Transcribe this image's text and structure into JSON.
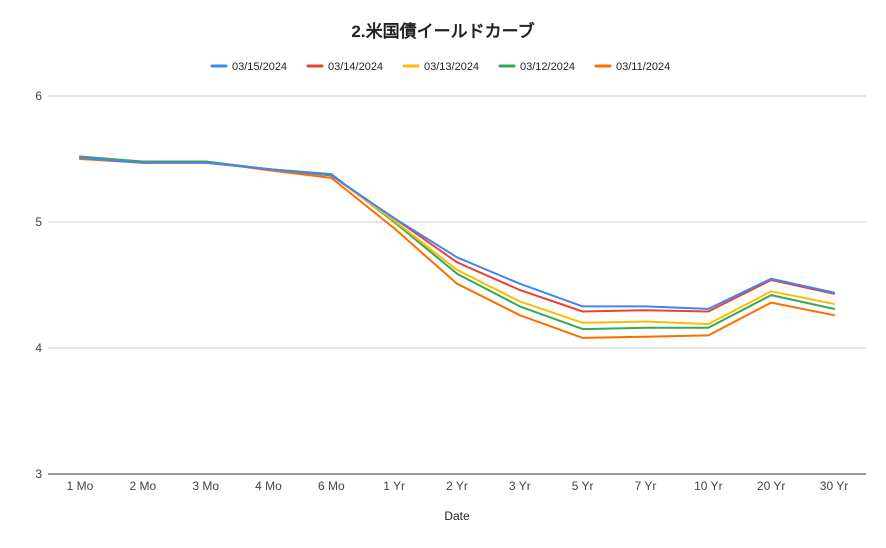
{
  "chart_data": {
    "type": "line",
    "title": "2.米国債イールドカーブ",
    "xlabel": "Date",
    "ylabel": "",
    "ylim": [
      3,
      6
    ],
    "yticks": [
      3,
      4,
      5,
      6
    ],
    "grid": true,
    "legend_position": "top",
    "categories": [
      "1 Mo",
      "2 Mo",
      "3 Mo",
      "4 Mo",
      "6 Mo",
      "1 Yr",
      "2 Yr",
      "3 Yr",
      "5 Yr",
      "7 Yr",
      "10 Yr",
      "20 Yr",
      "30 Yr"
    ],
    "series": [
      {
        "name": "03/15/2024",
        "color": "#4285f4",
        "values": [
          5.51,
          5.47,
          5.47,
          5.42,
          5.37,
          5.03,
          4.72,
          4.51,
          4.33,
          4.33,
          4.31,
          4.55,
          4.44
        ]
      },
      {
        "name": "03/14/2024",
        "color": "#ea4335",
        "values": [
          5.51,
          5.47,
          5.47,
          5.42,
          5.37,
          5.03,
          4.68,
          4.46,
          4.29,
          4.3,
          4.29,
          4.54,
          4.43
        ]
      },
      {
        "name": "03/13/2024",
        "color": "#fbbc04",
        "values": [
          5.51,
          5.47,
          5.47,
          5.42,
          5.37,
          5.01,
          4.62,
          4.37,
          4.2,
          4.21,
          4.19,
          4.45,
          4.35
        ]
      },
      {
        "name": "03/12/2024",
        "color": "#34a853",
        "values": [
          5.52,
          5.48,
          5.48,
          5.42,
          5.38,
          5.0,
          4.59,
          4.33,
          4.15,
          4.16,
          4.16,
          4.42,
          4.31
        ]
      },
      {
        "name": "03/11/2024",
        "color": "#ff6d01",
        "values": [
          5.5,
          5.47,
          5.48,
          5.41,
          5.35,
          4.95,
          4.51,
          4.26,
          4.08,
          4.09,
          4.1,
          4.36,
          4.26
        ]
      }
    ]
  }
}
